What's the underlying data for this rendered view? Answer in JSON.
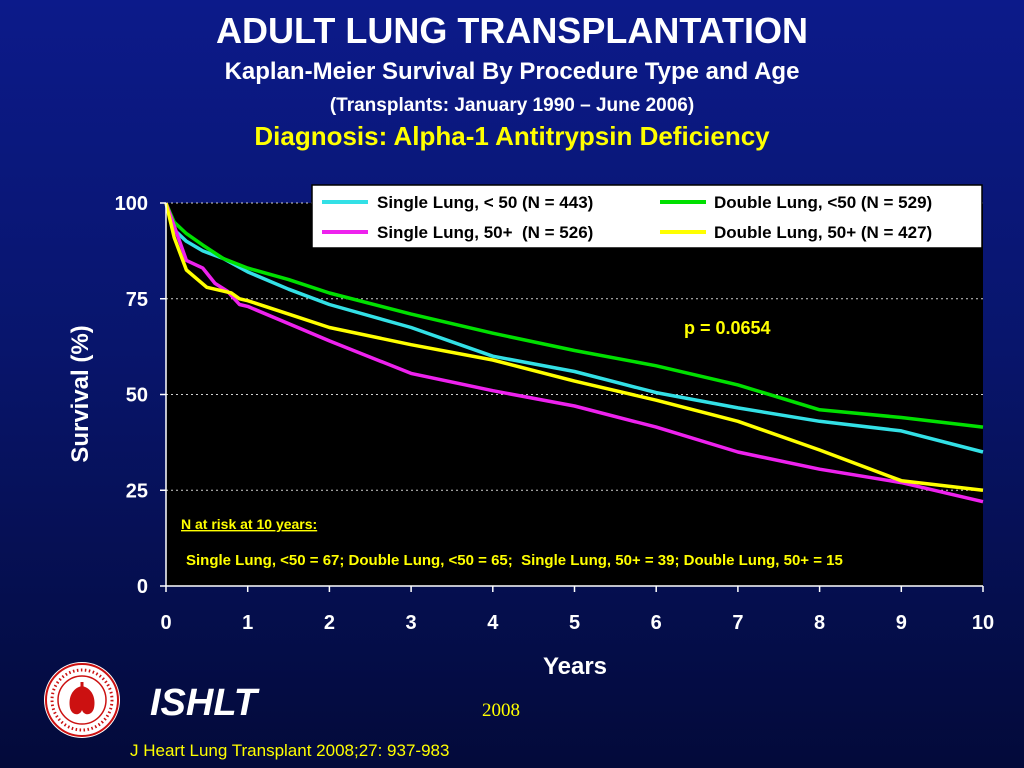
{
  "header": {
    "title": "ADULT LUNG TRANSPLANTATION",
    "subtitle": "Kaplan-Meier Survival By Procedure Type and Age",
    "period": "(Transplants: January 1990 – June 2006)",
    "diagnosis": "Diagnosis: Alpha-1 Antitrypsin Deficiency"
  },
  "footer": {
    "brand": "ISHLT",
    "year": "2008",
    "citation": "J Heart Lung Transplant 2008;27: 937-983",
    "logo_text": "INTERNATIONAL SOCIETY FOR HEART & LUNG TRANSPLANTATION"
  },
  "chart_data": {
    "type": "line",
    "xlabel": "Years",
    "ylabel": "Survival (%)",
    "xlim": [
      0,
      10
    ],
    "ylim": [
      0,
      100
    ],
    "x_ticks": [
      "0",
      "1",
      "2",
      "3",
      "4",
      "5",
      "6",
      "7",
      "8",
      "9",
      "10"
    ],
    "y_ticks": [
      "0",
      "25",
      "50",
      "75",
      "100"
    ],
    "grid": "horizontal dotted",
    "legend_position": "top-right",
    "series": [
      {
        "name": "Single Lung, < 50 (N = 443)",
        "color": "#33e0e6",
        "points": [
          [
            0,
            100
          ],
          [
            0.1,
            93
          ],
          [
            0.25,
            90
          ],
          [
            0.45,
            87.5
          ],
          [
            0.7,
            85.5
          ],
          [
            1,
            82
          ],
          [
            1.5,
            77.5
          ],
          [
            2,
            73.5
          ],
          [
            3,
            67.5
          ],
          [
            4,
            60
          ],
          [
            5,
            56
          ],
          [
            6,
            50.5
          ],
          [
            7,
            46.5
          ],
          [
            8,
            43
          ],
          [
            9,
            40.5
          ],
          [
            10,
            35
          ]
        ]
      },
      {
        "name": "Double Lung, <50 (N = 529)",
        "color": "#00e000",
        "points": [
          [
            0,
            100
          ],
          [
            0.1,
            95
          ],
          [
            0.25,
            92
          ],
          [
            0.45,
            89
          ],
          [
            0.7,
            85.5
          ],
          [
            1,
            83
          ],
          [
            1.5,
            80
          ],
          [
            2,
            76.5
          ],
          [
            3,
            71
          ],
          [
            4,
            66
          ],
          [
            5,
            61.5
          ],
          [
            6,
            57.5
          ],
          [
            7,
            52.5
          ],
          [
            8,
            46
          ],
          [
            9,
            44
          ],
          [
            10,
            41.5
          ]
        ]
      },
      {
        "name": "Single Lung, 50+  (N = 526)",
        "color": "#ee22ee",
        "points": [
          [
            0,
            100
          ],
          [
            0.1,
            94
          ],
          [
            0.25,
            85
          ],
          [
            0.45,
            83
          ],
          [
            0.6,
            79
          ],
          [
            0.75,
            77
          ],
          [
            0.9,
            73.5
          ],
          [
            1,
            73
          ],
          [
            1.5,
            68.5
          ],
          [
            2,
            64
          ],
          [
            3,
            55.5
          ],
          [
            4,
            51
          ],
          [
            5,
            47
          ],
          [
            6,
            41.5
          ],
          [
            7,
            35
          ],
          [
            8,
            30.5
          ],
          [
            9,
            27
          ],
          [
            10,
            22
          ]
        ]
      },
      {
        "name": "Double Lung, 50+ (N = 427)",
        "color": "#ffff00",
        "points": [
          [
            0,
            100
          ],
          [
            0.1,
            91
          ],
          [
            0.25,
            82.5
          ],
          [
            0.5,
            78
          ],
          [
            0.7,
            77
          ],
          [
            0.8,
            76.5
          ],
          [
            0.9,
            75
          ],
          [
            1,
            74.5
          ],
          [
            1.5,
            71
          ],
          [
            2,
            67.5
          ],
          [
            3,
            63
          ],
          [
            4,
            59
          ],
          [
            5,
            53.5
          ],
          [
            6,
            48.5
          ],
          [
            7,
            43
          ],
          [
            8,
            35.5
          ],
          [
            9,
            27.5
          ],
          [
            10,
            25
          ]
        ]
      }
    ],
    "annotations": {
      "p_value": "p = 0.0654",
      "n_at_risk_title": "N at risk at 10 years:",
      "n_at_risk_text": "Single Lung, <50 = 67; Double Lung, <50 = 65;  Single Lung, 50+ = 39; Double Lung, 50+ = 15"
    }
  }
}
